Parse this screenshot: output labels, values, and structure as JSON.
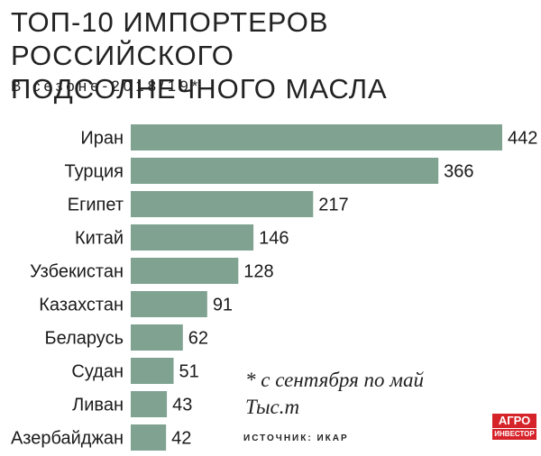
{
  "title_line1": "ТОП-10 ИМПОРТЕРОВ РОССИЙСКОГО",
  "title_line2": "ПОДСОЛНЕЧНОГО МАСЛА",
  "subtitle": "В сезоне-2018/19*",
  "note_line1": "* с сентября по май",
  "note_line2": "Тыс.т",
  "source": "ИСТОЧНИК: ИКАР",
  "logo_line1": "АГРО",
  "logo_line2": "ИНВЕСТОР",
  "colors": {
    "bar": "#7fa291",
    "logo": "#d6232a"
  },
  "chart_data": {
    "type": "bar",
    "orientation": "horizontal",
    "title": "ТОП-10 ИМПОРТЕРОВ РОССИЙСКОГО ПОДСОЛНЕЧНОГО МАСЛА",
    "subtitle": "В сезоне-2018/19*",
    "categories": [
      "Иран",
      "Турция",
      "Египет",
      "Китай",
      "Узбекистан",
      "Казахстан",
      "Беларусь",
      "Судан",
      "Ливан",
      "Азербайджан"
    ],
    "values": [
      442,
      366,
      217,
      146,
      128,
      91,
      62,
      51,
      43,
      42
    ],
    "unit": "Тыс.т",
    "data_labels": true,
    "grid": false
  }
}
